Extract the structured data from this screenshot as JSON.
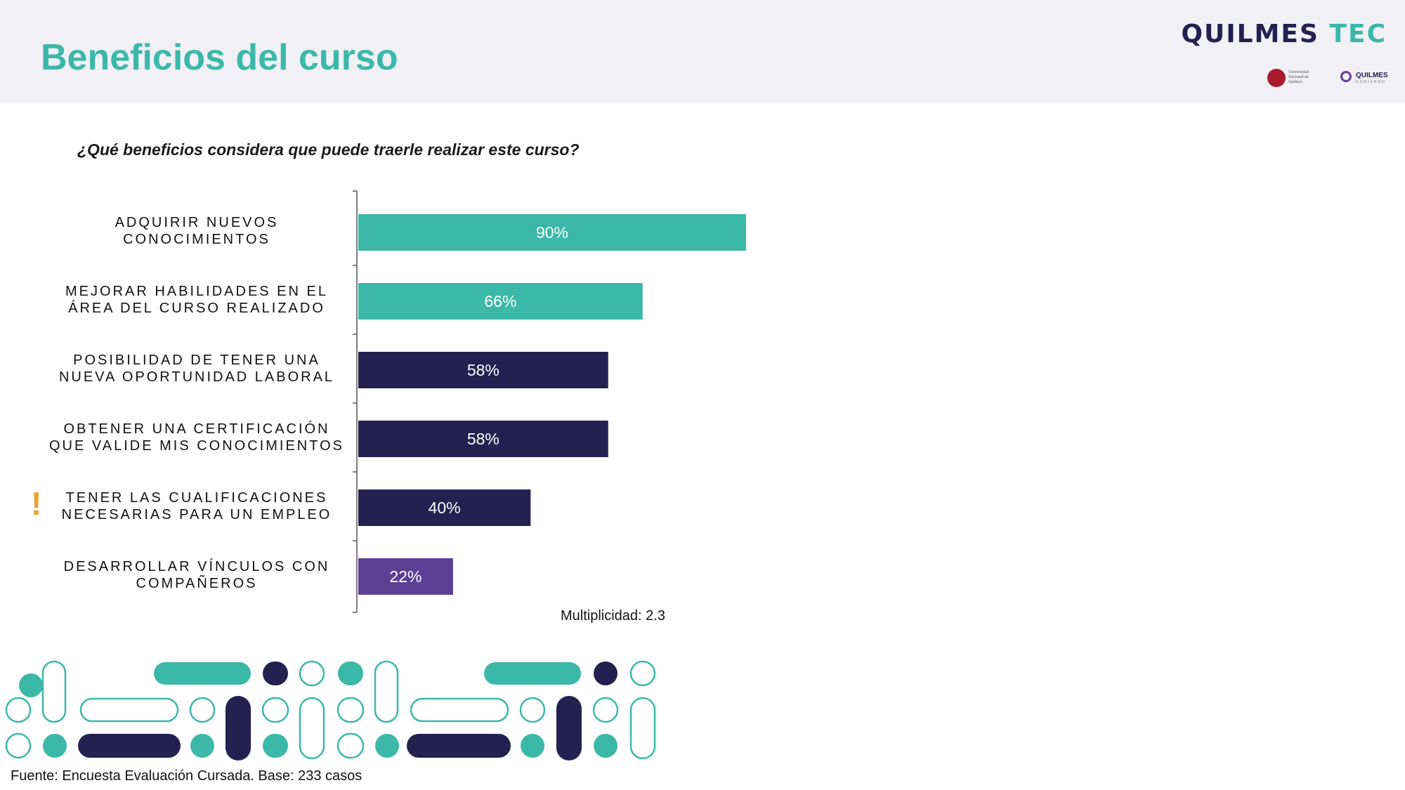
{
  "header": {
    "title": "Beneficios del curso",
    "brand_left": "QUILMES",
    "brand_right": "TEC",
    "partner_1": "Universidad Nacional de Quilmes",
    "partner_2_name": "QUILMES",
    "partner_2_sub": "GOBIERNO"
  },
  "colors": {
    "accent_teal": "#3bb8a8",
    "navy": "#242050",
    "purple": "#5e3f96",
    "warning": "#f0a030",
    "header_bg": "#f0f0f5"
  },
  "question": "¿Qué beneficios considera que puede traerle realizar este curso?",
  "chart_data": {
    "type": "bar",
    "orientation": "horizontal",
    "unit": "%",
    "xlim": [
      0,
      100
    ],
    "categories": [
      "ADQUIRIR NUEVOS CONOCIMIENTOS",
      "MEJORAR HABILIDADES EN EL ÁREA DEL CURSO REALIZADO",
      "POSIBILIDAD DE TENER UNA NUEVA OPORTUNIDAD LABORAL",
      "OBTENER UNA CERTIFICACIÓN QUE VALIDE MIS CONOCIMIENTOS",
      "TENER LAS CUALIFICACIONES NECESARIAS PARA UN EMPLEO",
      "DESARROLLAR VÍNCULOS CON COMPAÑEROS"
    ],
    "category_lines": [
      [
        "ADQUIRIR NUEVOS",
        "CONOCIMIENTOS"
      ],
      [
        "MEJORAR HABILIDADES EN EL",
        "ÁREA DEL CURSO REALIZADO"
      ],
      [
        "POSIBILIDAD DE TENER UNA",
        "NUEVA OPORTUNIDAD LABORAL"
      ],
      [
        "OBTENER UNA CERTIFICACIÓN",
        "QUE VALIDE MIS CONOCIMIENTOS"
      ],
      [
        "TENER LAS CUALIFICACIONES",
        "NECESARIAS PARA UN EMPLEO"
      ],
      [
        "DESARROLLAR VÍNCULOS CON",
        "COMPAÑEROS"
      ]
    ],
    "values": [
      90,
      66,
      58,
      58,
      40,
      22
    ],
    "data_labels": [
      "90%",
      "66%",
      "58%",
      "58%",
      "40%",
      "22%"
    ],
    "bar_colors": [
      "#3bb8a8",
      "#3bb8a8",
      "#242050",
      "#242050",
      "#242050",
      "#5e3f96"
    ],
    "highlighted_category_index": 4,
    "grid": false,
    "legend": "none"
  },
  "warning_mark": "!",
  "multiplicity": "Multiplicidad: 2.3",
  "source": "Fuente: Encuesta Evaluación Cursada. Base: 233 casos"
}
